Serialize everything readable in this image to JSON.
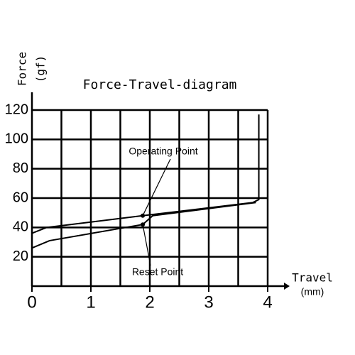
{
  "chart_data": {
    "type": "line",
    "title": "Force-Travel-diagram",
    "ylabel": "Force",
    "yunit": "(gf)",
    "xlabel": "Travel",
    "xunit": "(mm)",
    "xlim": [
      0,
      4
    ],
    "ylim": [
      0,
      120
    ],
    "xticks": [
      0,
      1,
      2,
      3,
      4
    ],
    "yticks": [
      20,
      40,
      60,
      80,
      100,
      120
    ],
    "xgrid": [
      0.5,
      1,
      1.5,
      2,
      2.5,
      3,
      3.5,
      4
    ],
    "grid": true,
    "series": [
      {
        "color": "#000000",
        "x": [
          0,
          0.25,
          1.88,
          3.75,
          3.85,
          3.85
        ],
        "values": [
          36,
          40,
          48,
          57,
          59,
          117
        ]
      },
      {
        "color": "#000000",
        "x": [
          3.8,
          2.05,
          1.88,
          0.3,
          0
        ],
        "values": [
          57,
          48,
          42,
          31,
          26
        ]
      }
    ],
    "annotations": [
      {
        "text": "Operating Point",
        "x": 1.88,
        "y": 48
      },
      {
        "text": "Reset Point",
        "x": 1.88,
        "y": 42
      }
    ]
  }
}
